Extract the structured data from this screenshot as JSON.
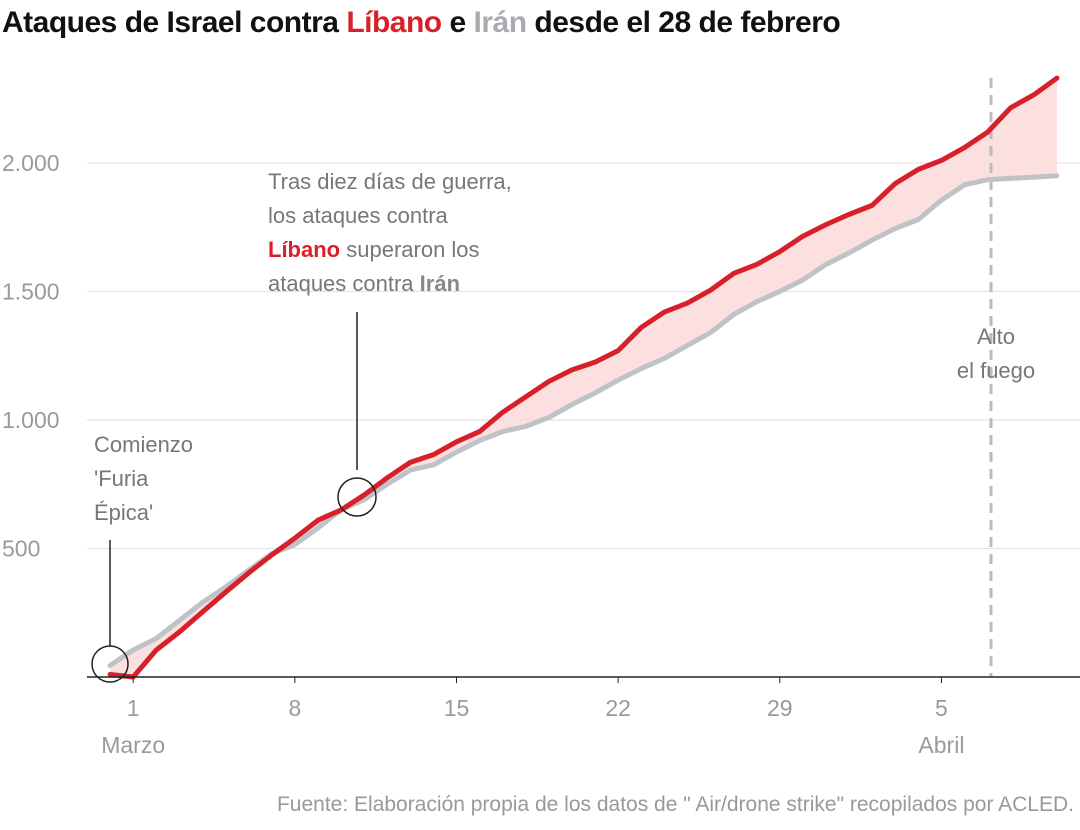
{
  "chart_data": {
    "type": "line",
    "title_parts": [
      "Ataques de Israel contra",
      "e",
      "desde el 28 de febrero"
    ],
    "x": [
      0,
      1,
      2,
      3,
      4,
      5,
      6,
      7,
      8,
      9,
      10,
      11,
      12,
      13,
      14,
      15,
      16,
      17,
      18,
      19,
      20,
      21,
      22,
      23,
      24,
      25,
      26,
      27,
      28,
      29,
      30,
      31,
      32,
      33,
      34,
      35,
      36,
      37,
      38,
      39,
      40,
      41
    ],
    "series": [
      {
        "name": "Líbano",
        "color": "#d7202a",
        "values": [
          10,
          0,
          105,
          175,
          253,
          330,
          405,
          475,
          540,
          610,
          650,
          708,
          775,
          835,
          865,
          915,
          955,
          1030,
          1090,
          1150,
          1195,
          1225,
          1270,
          1360,
          1420,
          1455,
          1505,
          1570,
          1605,
          1655,
          1715,
          1760,
          1800,
          1835,
          1920,
          1975,
          2010,
          2060,
          2120,
          2215,
          2265,
          2330
        ]
      },
      {
        "name": "Irán",
        "color": "#bfc3c7",
        "values": [
          45,
          105,
          150,
          220,
          290,
          350,
          415,
          480,
          515,
          580,
          650,
          690,
          750,
          805,
          825,
          875,
          920,
          955,
          975,
          1010,
          1060,
          1105,
          1155,
          1200,
          1240,
          1290,
          1340,
          1410,
          1460,
          1500,
          1545,
          1605,
          1650,
          1700,
          1745,
          1780,
          1855,
          1915,
          1935,
          1940,
          1945,
          1950
        ]
      }
    ],
    "xlim": [
      -1,
      42
    ],
    "xticks": [
      1,
      8,
      15,
      22,
      29,
      {
        "value": 36,
        "label": "5"
      }
    ],
    "month_labels": [
      {
        "value": 1,
        "label": "Marzo"
      },
      {
        "value": 36,
        "label": "Abril"
      }
    ],
    "ylim": [
      0,
      2350
    ],
    "yticks": [
      500,
      {
        "value": 1000,
        "label": "1.000"
      },
      {
        "value": 1500,
        "label": "1.500"
      },
      {
        "value": 2000,
        "label": "2.000"
      }
    ],
    "grid": true,
    "annotations": {
      "start": [
        "Comienzo",
        "'Furia",
        "Épica'"
      ],
      "crossing": {
        "line1": "Tras diez días de guerra,",
        "line2": "los ataques contra",
        "line3_bold": "Líbano",
        "line3": "superaron los",
        "line4": "ataques contra",
        "line4_bold": "Irán"
      },
      "ceasefire": [
        "Alto",
        "el fuego"
      ]
    },
    "source": "Fuente: Elaboración propia de los datos de \" Air/drone strike\" recopilados por ACLED."
  }
}
